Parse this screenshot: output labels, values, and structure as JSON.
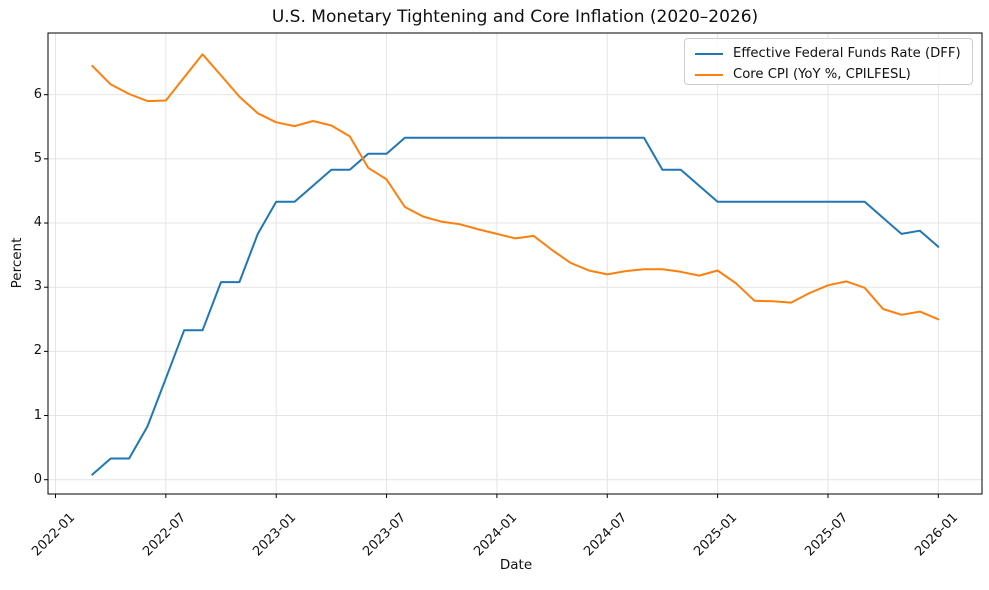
{
  "chart_data": {
    "type": "line",
    "title": "U.S. Monetary Tightening and Core Inflation (2020–2026)",
    "xlabel": "Date",
    "ylabel": "Percent",
    "grid": true,
    "legend_position": "upper right",
    "ylim": [
      -0.25,
      6.95
    ],
    "x_ticks": [
      "2022-01",
      "2022-07",
      "2023-01",
      "2023-07",
      "2024-01",
      "2024-07",
      "2025-01",
      "2025-07",
      "2026-01"
    ],
    "y_ticks": [
      0,
      1,
      2,
      3,
      4,
      5,
      6
    ],
    "x": [
      "2022-03",
      "2022-04",
      "2022-05",
      "2022-06",
      "2022-07",
      "2022-08",
      "2022-09",
      "2022-10",
      "2022-11",
      "2022-12",
      "2023-01",
      "2023-02",
      "2023-03",
      "2023-04",
      "2023-05",
      "2023-06",
      "2023-07",
      "2023-08",
      "2023-09",
      "2023-10",
      "2023-11",
      "2023-12",
      "2024-01",
      "2024-02",
      "2024-03",
      "2024-04",
      "2024-05",
      "2024-06",
      "2024-07",
      "2024-08",
      "2024-09",
      "2024-10",
      "2024-11",
      "2024-12",
      "2025-01",
      "2025-02",
      "2025-03",
      "2025-04",
      "2025-05",
      "2025-06",
      "2025-07",
      "2025-08",
      "2025-09",
      "2025-10",
      "2025-11",
      "2025-12",
      "2026-01"
    ],
    "series": [
      {
        "name": "Effective Federal Funds Rate (DFF)",
        "color": "#1f77b4",
        "values": [
          0.08,
          0.33,
          0.33,
          0.83,
          1.58,
          2.33,
          2.33,
          3.08,
          3.08,
          3.83,
          4.33,
          4.33,
          4.58,
          4.83,
          4.83,
          5.08,
          5.08,
          5.33,
          5.33,
          5.33,
          5.33,
          5.33,
          5.33,
          5.33,
          5.33,
          5.33,
          5.33,
          5.33,
          5.33,
          5.33,
          5.33,
          4.83,
          4.83,
          4.58,
          4.33,
          4.33,
          4.33,
          4.33,
          4.33,
          4.33,
          4.33,
          4.33,
          4.33,
          4.08,
          3.83,
          3.88,
          3.63
        ]
      },
      {
        "name": "Core CPI (YoY %, CPILFESL)",
        "color": "#ff7f0e",
        "values": [
          6.45,
          6.16,
          6.01,
          5.9,
          5.91,
          6.27,
          6.63,
          6.3,
          5.97,
          5.71,
          5.57,
          5.51,
          5.59,
          5.52,
          5.35,
          4.86,
          4.68,
          4.25,
          4.1,
          4.02,
          3.98,
          3.9,
          3.83,
          3.76,
          3.8,
          3.58,
          3.38,
          3.26,
          3.2,
          3.25,
          3.28,
          3.28,
          3.24,
          3.18,
          3.26,
          3.06,
          2.79,
          2.78,
          2.76,
          2.91,
          3.03,
          3.09,
          2.99,
          2.66,
          2.57,
          2.62,
          2.5
        ]
      }
    ]
  }
}
